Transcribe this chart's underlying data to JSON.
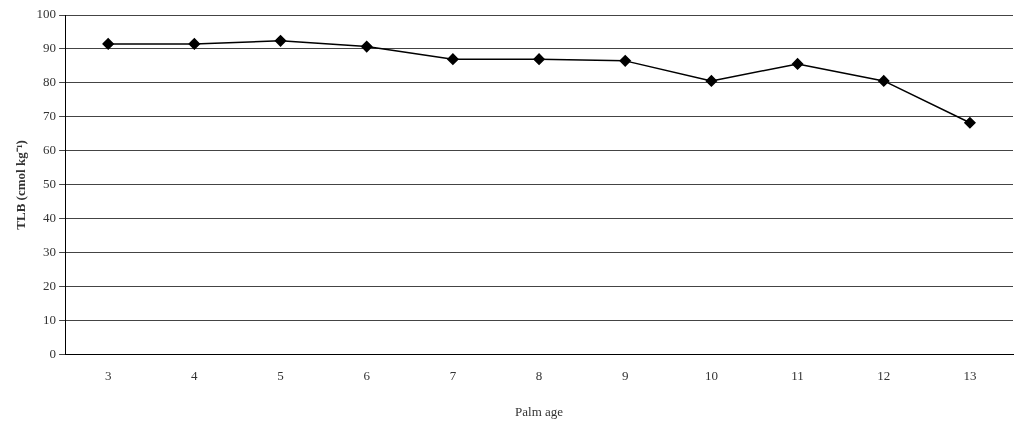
{
  "chart_data": {
    "type": "line",
    "xlabel": "Palm age",
    "ylabel": "TLB (cmol kg⁻¹)",
    "categories": [
      "3",
      "4",
      "5",
      "6",
      "7",
      "8",
      "9",
      "10",
      "11",
      "12",
      "13"
    ],
    "series": [
      {
        "color": "#000000",
        "values": [
          91.5,
          91.5,
          92.4,
          90.7,
          87,
          87,
          86.5,
          80.6,
          85.6,
          80.6,
          68.3
        ]
      }
    ],
    "ylim": [
      0,
      100
    ],
    "yticks": [
      0,
      10,
      20,
      30,
      40,
      50,
      60,
      70,
      80,
      90,
      100
    ],
    "grid": "y",
    "legend": false,
    "marker": "diamond",
    "line_style": "solid"
  }
}
